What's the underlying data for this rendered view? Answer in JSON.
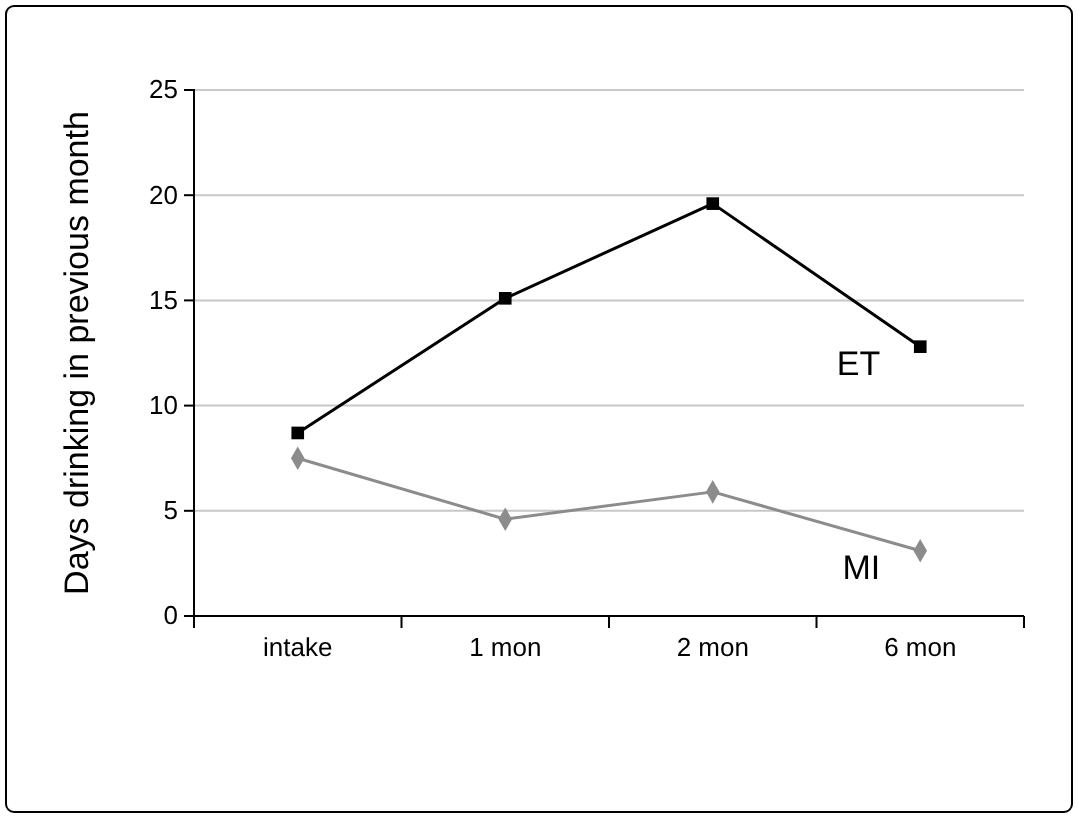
{
  "chart_data": {
    "type": "line",
    "ylabel": "Days drinking in previous month",
    "categories": [
      "intake",
      "1 mon",
      "2 mon",
      "6 mon"
    ],
    "series": [
      {
        "name": "ET",
        "color": "#000000",
        "marker": "square",
        "values": [
          8.7,
          15.1,
          19.6,
          12.8
        ]
      },
      {
        "name": "MI",
        "color": "#8c8c8c",
        "marker": "diamond",
        "values": [
          7.5,
          4.6,
          5.9,
          3.1
        ]
      }
    ],
    "ylim": [
      0,
      25
    ],
    "yticks": [
      0,
      5,
      10,
      15,
      20,
      25
    ],
    "grid": "y",
    "legend": false
  }
}
